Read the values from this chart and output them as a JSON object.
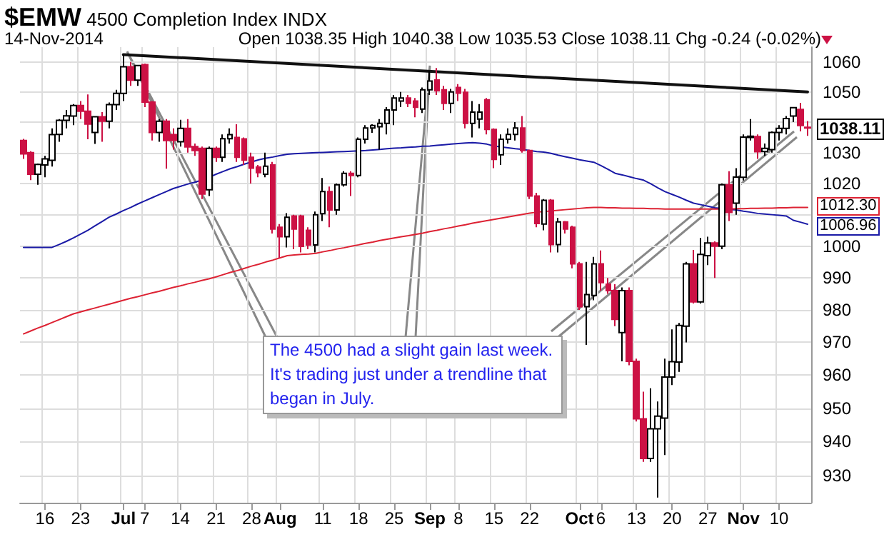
{
  "chart_data": {
    "type": "candlestick",
    "title": "$EMW 4500 Completion Index INDX",
    "subtitle": "14-Nov-2014",
    "annotations": [
      "Open 1038.35 High 1040.38 Low 1035.53 Close 1038.11 Chg -0.24 (-0.02%)",
      "The 4500 had a slight gain last week.  It's trading just under a trendline that began in July."
    ],
    "categories": [
      null,
      null,
      null,
      "16",
      null,
      null,
      null,
      null,
      "23",
      null,
      null,
      null,
      null,
      null,
      "Jul",
      null,
      null,
      "7",
      null,
      null,
      null,
      null,
      "14",
      null,
      null,
      null,
      null,
      "21",
      null,
      null,
      null,
      null,
      "28",
      null,
      null,
      null,
      "Aug",
      null,
      null,
      null,
      null,
      null,
      "11",
      null,
      null,
      null,
      null,
      "18",
      null,
      null,
      null,
      null,
      "25",
      null,
      null,
      null,
      null,
      "Sep",
      null,
      null,
      null,
      "8",
      null,
      null,
      null,
      null,
      "15",
      null,
      null,
      null,
      null,
      "22",
      null,
      null,
      null,
      null,
      null,
      null,
      "Oct",
      null,
      null,
      "6",
      null,
      null,
      null,
      null,
      "13",
      null,
      null,
      null,
      null,
      "20",
      null,
      null,
      null,
      null,
      "27",
      null,
      null,
      null,
      null,
      "Nov",
      null,
      null,
      null,
      null,
      "10",
      null,
      null,
      null,
      null
    ],
    "log": "y",
    "ylim": [
      922,
      1065
    ],
    "yticks": [
      930,
      940,
      950,
      960,
      970,
      980,
      990,
      1000,
      {
        "value": 1010,
        "label": null
      },
      1020,
      1030,
      {
        "value": 1040,
        "label": null
      },
      1050,
      1060
    ],
    "grid": true,
    "series": [
      {
        "type": "candlestick",
        "value_labels": [
          null,
          null,
          null,
          null,
          null,
          null,
          null,
          null,
          null,
          null,
          null,
          null,
          null,
          null,
          null,
          null,
          null,
          null,
          null,
          null,
          null,
          null,
          null,
          null,
          null,
          null,
          null,
          null,
          null,
          null,
          null,
          null,
          null,
          null,
          null,
          null,
          null,
          null,
          null,
          null,
          null,
          null,
          null,
          null,
          null,
          null,
          null,
          null,
          null,
          null,
          null,
          null,
          null,
          null,
          null,
          null,
          null,
          null,
          null,
          null,
          null,
          null,
          null,
          null,
          null,
          null,
          null,
          null,
          null,
          null,
          null,
          null,
          null,
          null,
          null,
          null,
          null,
          null,
          null,
          null,
          null,
          null,
          null,
          null,
          null,
          null,
          null,
          null,
          null,
          null,
          null,
          null,
          null,
          null,
          null,
          null,
          null,
          null,
          null,
          null,
          null,
          null,
          null,
          null,
          null,
          null,
          null,
          null,
          null,
          null,
          "1038.11"
        ],
        "colors": [
          "#cc1144",
          "#cc1144",
          "#ffffff",
          "#ffffff",
          "#ffffff",
          "#ffffff",
          "#ffffff",
          "#ffffff",
          "#cc1144",
          "#cc1144",
          "#ffffff",
          "#cc1144",
          "#ffffff",
          "#ffffff",
          "#ffffff",
          "#cc1144",
          "#ffffff",
          "#cc1144",
          "#cc1144",
          "#ffffff",
          "#cc1144",
          "#cc1144",
          "#ffffff",
          "#cc1144",
          "#cc1144",
          "#cc1144",
          "#ffffff",
          "#cc1144",
          "#ffffff",
          "#ffffff",
          "#cc1144",
          "#cc1144",
          "#cc1144",
          "#cc1144",
          "#ffffff",
          "#cc1144",
          "#cc1144",
          "#ffffff",
          "#cc1144",
          "#cc1144",
          "#cc1144",
          "#ffffff",
          "#ffffff",
          "#cc1144",
          "#ffffff",
          "#ffffff",
          "#cc1144",
          "#ffffff",
          "#ffffff",
          "#ffffff",
          "#ffffff",
          "#ffffff",
          "#ffffff",
          "#ffffff",
          "#cc1144",
          "#cc1144",
          "#ffffff",
          "#ffffff",
          "#cc1144",
          "#cc1144",
          "#ffffff",
          "#cc1144",
          "#cc1144",
          "#ffffff",
          "#ffffff",
          "#cc1144",
          "#cc1144",
          "#ffffff",
          "#ffffff",
          "#ffffff",
          "#cc1144",
          "#cc1144",
          "#cc1144",
          "#ffffff",
          "#cc1144",
          "#ffffff",
          "#cc1144",
          "#cc1144",
          "#cc1144",
          "#ffffff",
          "#ffffff",
          "#cc1144",
          "#cc1144",
          "#cc1144",
          "#ffffff",
          "#cc1144",
          "#cc1144",
          "#cc1144",
          "#ffffff",
          "#ffffff",
          "#ffffff",
          "#ffffff",
          "#ffffff",
          "#ffffff",
          "#cc1144",
          "#ffffff",
          "#ffffff",
          "#cc1144",
          "#ffffff",
          "#cc1144",
          "#ffffff",
          "#ffffff",
          "#ffffff",
          "#cc1144",
          "#ffffff",
          "#ffffff",
          "#ffffff",
          "#ffffff",
          "#ffffff",
          "#cc1144",
          "#cc1144"
        ],
        "ohlc": [
          [
            1034,
            1034.5,
            1028,
            1029.6
          ],
          [
            1030,
            1030.5,
            1021.1,
            1023
          ],
          [
            1023,
            1026.5,
            1019.6,
            1026.2
          ],
          [
            1026,
            1029,
            1022,
            1028
          ],
          [
            1027.5,
            1038,
            1025.5,
            1035.9
          ],
          [
            1036,
            1041,
            1033.6,
            1040.6
          ],
          [
            1040.6,
            1044,
            1038,
            1042.1
          ],
          [
            1042,
            1046,
            1039,
            1045.5
          ],
          [
            1045.5,
            1047,
            1041,
            1043.6
          ],
          [
            1043.6,
            1049.2,
            1034.4,
            1039.4
          ],
          [
            1036.6,
            1042,
            1032.9,
            1041.8
          ],
          [
            1041.8,
            1043.3,
            1033.6,
            1040.3
          ],
          [
            1040.3,
            1046.5,
            1038,
            1045.8
          ],
          [
            1045.8,
            1050.7,
            1044,
            1049.5
          ],
          [
            1049.5,
            1062.5,
            1047,
            1058.4
          ],
          [
            1058.4,
            1060,
            1052,
            1053.9
          ],
          [
            1053.9,
            1059,
            1052,
            1058.8
          ],
          [
            1059.1,
            1059.5,
            1045,
            1046.6
          ],
          [
            1046.6,
            1047,
            1034,
            1036.6
          ],
          [
            1036.6,
            1041,
            1033.6,
            1040.3
          ],
          [
            1040.3,
            1041,
            1024.8,
            1034
          ],
          [
            1035.9,
            1038,
            1031,
            1034
          ],
          [
            1033.6,
            1040.8,
            1032,
            1038
          ],
          [
            1038,
            1041,
            1030,
            1031.9
          ],
          [
            1032,
            1033,
            1029,
            1030.7
          ],
          [
            1031.4,
            1032,
            1015,
            1016.6
          ],
          [
            1018,
            1032,
            1016,
            1031.4
          ],
          [
            1031.4,
            1032,
            1027,
            1028.5
          ],
          [
            1028.5,
            1036,
            1027,
            1034.6
          ],
          [
            1034.6,
            1038,
            1033,
            1035.9
          ],
          [
            1035,
            1039.3,
            1027,
            1028.5
          ],
          [
            1034.5,
            1035,
            1026,
            1027.6
          ],
          [
            1028.5,
            1030,
            1020,
            1025
          ],
          [
            1025.3,
            1026,
            1022,
            1023.5
          ],
          [
            1023,
            1030,
            1022,
            1025.6
          ],
          [
            1026,
            1027,
            1004,
            1005.4
          ],
          [
            1006,
            1007,
            996.2,
            1003
          ],
          [
            1003,
            1010.5,
            999.6,
            1009.2
          ],
          [
            1009.6,
            1010,
            999,
            1005.4
          ],
          [
            1009.6,
            1010,
            998,
            999.9
          ],
          [
            1005,
            1006,
            999,
            1000.4
          ],
          [
            1000.4,
            1011,
            998,
            1010
          ],
          [
            1010.3,
            1021.8,
            1008,
            1017.4
          ],
          [
            1017.4,
            1019,
            1006,
            1011.5
          ],
          [
            1011.5,
            1020,
            1010,
            1019.6
          ],
          [
            1019.6,
            1024,
            1019,
            1023.3
          ],
          [
            1023.3,
            1024,
            1016,
            1022.6
          ],
          [
            1022.6,
            1035,
            1022,
            1034.4
          ],
          [
            1034.4,
            1039,
            1033,
            1038.1
          ],
          [
            1038.1,
            1039.3,
            1036.5,
            1038.9
          ],
          [
            1038.5,
            1041,
            1031,
            1039.6
          ],
          [
            1039.6,
            1045,
            1036,
            1044
          ],
          [
            1044,
            1049,
            1039,
            1048
          ],
          [
            1047,
            1050,
            1045,
            1048
          ],
          [
            1048,
            1049,
            1045,
            1046.2
          ],
          [
            1047,
            1048,
            1041.6,
            1044.9
          ],
          [
            1044.3,
            1051.5,
            1043,
            1050.7
          ],
          [
            1050.7,
            1057,
            1049,
            1053.6
          ],
          [
            1054,
            1058,
            1049,
            1050.4
          ],
          [
            1050.7,
            1052,
            1044,
            1046.2
          ],
          [
            1046.2,
            1051,
            1043,
            1050
          ],
          [
            1051.5,
            1052.6,
            1047,
            1049.6
          ],
          [
            1049.9,
            1051,
            1038,
            1039.6
          ],
          [
            1039.6,
            1047,
            1035,
            1043.3
          ],
          [
            1041,
            1046,
            1038,
            1043.3
          ],
          [
            1047.4,
            1048,
            1036,
            1037.6
          ],
          [
            1037.6,
            1038,
            1025,
            1027.8
          ],
          [
            1029.3,
            1036,
            1026,
            1034.4
          ],
          [
            1034.4,
            1038,
            1033,
            1036
          ],
          [
            1036,
            1040,
            1034,
            1038.1
          ],
          [
            1038.1,
            1042,
            1030,
            1030.7
          ],
          [
            1030.7,
            1031,
            1015,
            1016
          ],
          [
            1016,
            1017,
            1006,
            1007.2
          ],
          [
            1007,
            1015,
            1005,
            1014.6
          ],
          [
            1014.6,
            1015,
            998,
            1000.5
          ],
          [
            1000.5,
            1009,
            998,
            1007.7
          ],
          [
            1007.7,
            1008,
            1004,
            1005.4
          ],
          [
            1006,
            1006.5,
            993,
            994.4
          ],
          [
            994.4,
            995,
            980,
            981
          ],
          [
            981,
            995,
            969.2,
            984.8
          ],
          [
            984.5,
            996.6,
            983,
            994.4
          ],
          [
            994.4,
            998.6,
            986,
            988.5
          ],
          [
            988,
            990,
            985,
            986
          ],
          [
            986,
            988,
            975,
            977.1
          ],
          [
            973,
            987,
            964.2,
            986
          ],
          [
            986,
            987,
            963,
            964.2
          ],
          [
            964.2,
            965,
            946,
            946.8
          ],
          [
            946.8,
            955,
            934,
            935
          ],
          [
            935,
            956,
            934,
            943.8
          ],
          [
            943.8,
            952,
            923.5,
            947.6
          ],
          [
            947,
            965,
            936,
            959.4
          ],
          [
            959.4,
            974,
            957,
            964.1
          ],
          [
            964,
            976,
            961,
            975.2
          ],
          [
            975,
            995,
            970,
            994.4
          ],
          [
            994.4,
            998.8,
            982,
            982.5
          ],
          [
            982.5,
            1002.6,
            982,
            997.4
          ],
          [
            997,
            1003,
            994,
            1001
          ],
          [
            1001,
            1001.5,
            990,
            1000
          ],
          [
            1000,
            1020,
            999,
            1019.6
          ],
          [
            1019.6,
            1024,
            1008,
            1010.7
          ],
          [
            1013.7,
            1025,
            1010,
            1022.1
          ],
          [
            1022,
            1036,
            1021,
            1035.1
          ],
          [
            1035,
            1041,
            1034,
            1035.4
          ],
          [
            1035.3,
            1036,
            1028,
            1030.3
          ],
          [
            1030.4,
            1033,
            1029,
            1031.4
          ],
          [
            1031,
            1037,
            1030,
            1036.6
          ],
          [
            1036.6,
            1039,
            1034,
            1038
          ],
          [
            1038,
            1042,
            1036,
            1041.2
          ],
          [
            1042,
            1045,
            1040,
            1044.8
          ],
          [
            1044.2,
            1046.4,
            1037,
            1038.9
          ],
          [
            1038.35,
            1040.38,
            1035.53,
            1038.11
          ]
        ]
      },
      {
        "type": "line",
        "color": "#1a1aa6",
        "values": [
          999.6,
          999.6,
          999.6,
          999.6,
          999.6,
          1000.5,
          1001.5,
          1002.6,
          1003.8,
          1005,
          1006.4,
          1007.8,
          1009.2,
          1010.2,
          1011.3,
          1012.3,
          1013.4,
          1014.4,
          1015.4,
          1016.4,
          1017.4,
          1018.4,
          1019.1,
          1019.8,
          1020.4,
          1021.1,
          1022,
          1023,
          1023.9,
          1024.8,
          1025.5,
          1026.3,
          1027,
          1027.7,
          1028.2,
          1028.6,
          1029.1,
          1029.5,
          1029.7,
          1029.8,
          1029.9,
          1030,
          1030.1,
          1030.2,
          1030.3,
          1030.4,
          1030.5,
          1030.6,
          1030.7,
          1030.9,
          1031.1,
          1031.3,
          1031.5,
          1031.6,
          1031.8,
          1031.9,
          1032.1,
          1032.2,
          1032.4,
          1032.6,
          1032.8,
          1033,
          1033.2,
          1033.3,
          1033.1,
          1032.8,
          1032.2,
          1031.9,
          1031.6,
          1031.3,
          1031.1,
          1030.7,
          1030.4,
          1030.2,
          1029.8,
          1029.2,
          1028.7,
          1028.2,
          1027.7,
          1027.3,
          1026.9,
          1025.8,
          1024.6,
          1023.3,
          1022.8,
          1022.2,
          1021.6,
          1021.1,
          1019.9,
          1018.6,
          1017.4,
          1016.5,
          1015.6,
          1014.6,
          1013.7,
          1013.2,
          1012.7,
          1012.2,
          1012,
          1011.7,
          1011.5,
          1011.1,
          1010.8,
          1010.4,
          1010.2,
          1010,
          1009.8,
          1009.6,
          1008.2,
          1007.6,
          1006.96
        ],
        "value_labels": [
          null,
          null,
          null,
          null,
          null,
          null,
          null,
          null,
          null,
          null,
          null,
          null,
          null,
          null,
          null,
          null,
          null,
          null,
          null,
          null,
          null,
          null,
          null,
          null,
          null,
          null,
          null,
          null,
          null,
          null,
          null,
          null,
          null,
          null,
          null,
          null,
          null,
          null,
          null,
          null,
          null,
          null,
          null,
          null,
          null,
          null,
          null,
          null,
          null,
          null,
          null,
          null,
          null,
          null,
          null,
          null,
          null,
          null,
          null,
          null,
          null,
          null,
          null,
          null,
          null,
          null,
          null,
          null,
          null,
          null,
          null,
          null,
          null,
          null,
          null,
          null,
          null,
          null,
          null,
          null,
          null,
          null,
          null,
          null,
          null,
          null,
          null,
          null,
          null,
          null,
          null,
          null,
          null,
          null,
          null,
          null,
          null,
          null,
          null,
          null,
          null,
          null,
          null,
          null,
          null,
          null,
          null,
          null,
          null,
          null,
          "1006.96"
        ]
      },
      {
        "type": "line",
        "color": "#dd2233",
        "values": [
          972.6,
          973.5,
          974.4,
          975.2,
          976.1,
          977,
          977.9,
          978.8,
          979.4,
          980,
          980.6,
          981.2,
          981.8,
          982.4,
          983,
          983.6,
          984.1,
          984.7,
          985.3,
          985.8,
          986.4,
          987,
          987.5,
          988.1,
          988.6,
          989.2,
          989.7,
          990.3,
          991,
          991.7,
          992.3,
          993,
          993.7,
          994.3,
          995,
          995.6,
          996.3,
          997,
          997.2,
          997.4,
          997.5,
          997.7,
          998.2,
          998.6,
          999.1,
          999.5,
          1000,
          1000.4,
          1000.9,
          1001.3,
          1001.8,
          1002.2,
          1002.6,
          1003,
          1003.3,
          1003.7,
          1004.1,
          1004.6,
          1005,
          1005.5,
          1005.9,
          1006.4,
          1006.8,
          1007.3,
          1007.7,
          1008.1,
          1008.5,
          1008.9,
          1009.3,
          1009.7,
          1010.1,
          1010.5,
          1010.8,
          1011,
          1011.2,
          1011.4,
          1011.6,
          1011.8,
          1012,
          1012.2,
          1012.3,
          1012.3,
          1012.2,
          1012.2,
          1012.1,
          1012.1,
          1012,
          1012,
          1011.9,
          1011.9,
          1011.8,
          1011.8,
          1011.8,
          1011.8,
          1011.8,
          1011.8,
          1011.8,
          1011.8,
          1011.8,
          1011.8,
          1011.9,
          1011.9,
          1012,
          1012,
          1012.1,
          1012.1,
          1012.2,
          1012.2,
          1012.3,
          1012.3,
          1012.3
        ],
        "value_labels": [
          null,
          null,
          null,
          null,
          null,
          null,
          null,
          null,
          null,
          null,
          null,
          null,
          null,
          null,
          null,
          null,
          null,
          null,
          null,
          null,
          null,
          null,
          null,
          null,
          null,
          null,
          null,
          null,
          null,
          null,
          null,
          null,
          null,
          null,
          null,
          null,
          null,
          null,
          null,
          null,
          null,
          null,
          null,
          null,
          null,
          null,
          null,
          null,
          null,
          null,
          null,
          null,
          null,
          null,
          null,
          null,
          null,
          null,
          null,
          null,
          null,
          null,
          null,
          null,
          null,
          null,
          null,
          null,
          null,
          null,
          null,
          null,
          null,
          null,
          null,
          null,
          null,
          null,
          null,
          null,
          null,
          null,
          null,
          null,
          null,
          null,
          null,
          null,
          null,
          null,
          null,
          null,
          null,
          null,
          null,
          null,
          null,
          null,
          null,
          null,
          null,
          null,
          null,
          null,
          null,
          null,
          null,
          null,
          null,
          null,
          "1012.30"
        ]
      },
      {
        "type": "line",
        "color": "#111111",
        "values": [
          null,
          null,
          null,
          null,
          null,
          null,
          null,
          null,
          null,
          null,
          null,
          null,
          null,
          null,
          1062.5,
          null,
          null,
          null,
          null,
          null,
          null,
          null,
          null,
          null,
          null,
          null,
          null,
          null,
          null,
          null,
          null,
          null,
          null,
          null,
          null,
          null,
          null,
          null,
          null,
          null,
          null,
          null,
          null,
          null,
          null,
          null,
          null,
          null,
          null,
          null,
          null,
          null,
          null,
          null,
          null,
          null,
          null,
          null,
          null,
          null,
          null,
          null,
          null,
          null,
          null,
          null,
          null,
          null,
          null,
          null,
          null,
          null,
          null,
          null,
          null,
          null,
          null,
          null,
          null,
          null,
          null,
          null,
          null,
          null,
          null,
          null,
          null,
          null,
          null,
          null,
          null,
          null,
          null,
          null,
          null,
          null,
          null,
          null,
          null,
          null,
          null,
          null,
          null,
          null,
          null,
          null,
          null,
          null,
          null,
          null,
          1050
        ]
      }
    ]
  }
}
